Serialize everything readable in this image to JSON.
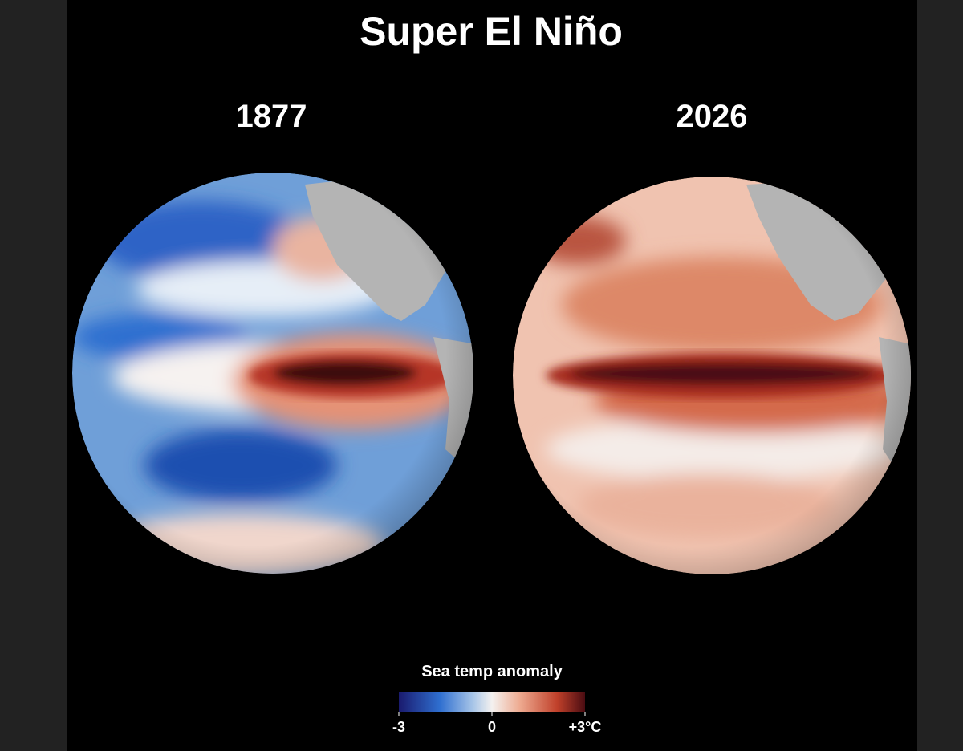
{
  "title": "Super El Niño",
  "panels": [
    {
      "label": "1877"
    },
    {
      "label": "2026"
    }
  ],
  "legend": {
    "title": "Sea temp anomaly",
    "ticks": [
      -3,
      0,
      {
        "value": 3,
        "label": "+3°C"
      }
    ]
  }
}
